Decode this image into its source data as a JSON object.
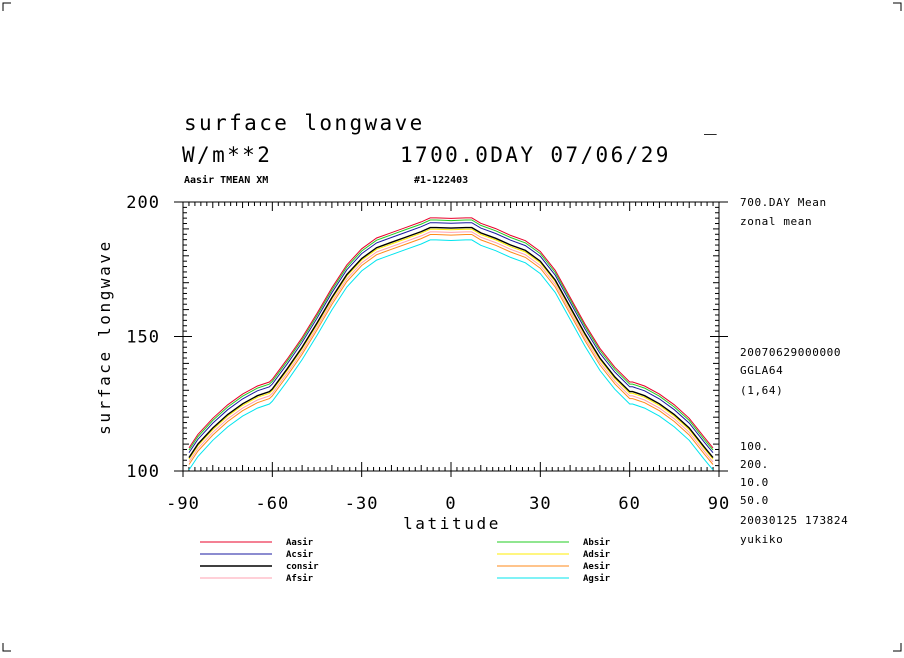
{
  "header": {
    "title": "surface longwave",
    "marker": "_",
    "units": "W/m**2",
    "time": "1700.0DAY 07/06/29",
    "run_label": "Aasir TMEAN XM",
    "run_id": "#1-122403"
  },
  "side_info": {
    "lines_top": [
      "700.DAY Mean",
      "zonal mean"
    ],
    "lines_mid": [
      "20070629000000",
      "GGLA64",
      "(1,64)"
    ],
    "lines_bottom": [
      "100.",
      "200.",
      "10.0",
      "50.0",
      "20030125 173824",
      "yukiko"
    ]
  },
  "colors": {
    "Aasir": "#e8002a",
    "Absir": "#22cc22",
    "Acsir": "#1a1aa0",
    "Adsir": "#ffee00",
    "consir": "#000000",
    "Aesir": "#ff8a1a",
    "Afsir": "#ffa0b0",
    "Agsir": "#00e5ee"
  },
  "chart_data": {
    "type": "line",
    "xlabel": "latitude",
    "ylabel": "surface longwave",
    "xlim": [
      -90,
      90
    ],
    "ylim": [
      100,
      200
    ],
    "xticks": [
      -90,
      -60,
      -30,
      0,
      30,
      60,
      90
    ],
    "xtick_labels": [
      "-90",
      "-60",
      "-30",
      "0",
      "30",
      "60",
      "90"
    ],
    "yticks": [
      100,
      150,
      200
    ],
    "ytick_labels": [
      "100",
      "150",
      "200"
    ],
    "x": [
      -88,
      -85,
      -80,
      -75,
      -70,
      -65,
      -61,
      -60,
      -55,
      -50,
      -45,
      -40,
      -35,
      -30,
      -25,
      -20,
      -15,
      -10,
      -7,
      -5,
      0,
      5,
      7,
      10,
      15,
      20,
      25,
      30,
      35,
      40,
      45,
      50,
      55,
      60,
      61,
      65,
      70,
      75,
      80,
      85,
      88
    ],
    "base": [
      105,
      110,
      116,
      121,
      125,
      128,
      129.5,
      130.5,
      138,
      146,
      155,
      164.5,
      173,
      179,
      183,
      185,
      187,
      189,
      190.5,
      190.5,
      190.3,
      190.5,
      190.5,
      188.5,
      186.5,
      184,
      182,
      178,
      171,
      161,
      151,
      142,
      135,
      129.5,
      129.5,
      128,
      125,
      121,
      116,
      109,
      105
    ],
    "series": [
      {
        "name": "Aasir",
        "offset": 3.6
      },
      {
        "name": "Acsir",
        "offset": 1.8
      },
      {
        "name": "consir",
        "offset": 0
      },
      {
        "name": "Afsir",
        "offset": -1.6
      },
      {
        "name": "Absir",
        "offset": 2.8
      },
      {
        "name": "Adsir",
        "offset": -0.6
      },
      {
        "name": "Aesir",
        "offset": -2.6
      },
      {
        "name": "Agsir",
        "offset": -4.6
      }
    ],
    "legend": {
      "left": [
        "Aasir",
        "Acsir",
        "consir",
        "Afsir"
      ],
      "right": [
        "Absir",
        "Adsir",
        "Aesir",
        "Agsir"
      ]
    }
  }
}
